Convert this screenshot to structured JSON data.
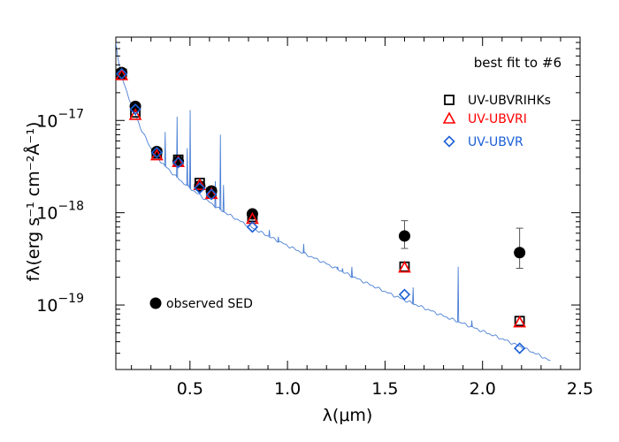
{
  "chart_data": {
    "type": "scatter",
    "title": "",
    "xlabel": "λ(μm)",
    "ylabel": "fλ(erg s⁻¹ cm⁻²Å⁻¹)",
    "xlim": [
      0.12,
      2.5
    ],
    "ylim": [
      2e-20,
      8e-17
    ],
    "yscale": "log",
    "grid": false,
    "x_ticks": [
      {
        "value": 0.5,
        "label": "0.5"
      },
      {
        "value": 1.0,
        "label": "1.0"
      },
      {
        "value": 1.5,
        "label": "1.5"
      },
      {
        "value": 2.0,
        "label": "2.0"
      },
      {
        "value": 2.5,
        "label": "2.5"
      }
    ],
    "y_ticks": [
      {
        "value": 1e-17,
        "base": "10",
        "exp": "−17"
      },
      {
        "value": 1e-18,
        "base": "10",
        "exp": "−18"
      },
      {
        "value": 1e-19,
        "base": "10",
        "exp": "−19"
      }
    ],
    "annotation": "best fit to #6",
    "legend": {
      "placement": "top-right",
      "entries": [
        {
          "label": "UV-UBVRIHKs",
          "marker": "square",
          "color": "#000000"
        },
        {
          "label": "UV-UBVRI",
          "marker": "triangle",
          "color": "#ff0000"
        },
        {
          "label": "UV-UBVR",
          "marker": "diamond",
          "color": "#1a5fd6"
        }
      ]
    },
    "observed_label": "observed SED",
    "series": [
      {
        "label": "observed SED",
        "marker": "filled-circle",
        "color": "#000000",
        "x": [
          0.15,
          0.22,
          0.33,
          0.44,
          0.55,
          0.61,
          0.82,
          1.6,
          2.19
        ],
        "y": [
          3.3e-17,
          1.42e-17,
          4.6e-18,
          3.6e-18,
          1.95e-18,
          1.72e-18,
          9.7e-19,
          5.6e-19,
          3.7e-19
        ],
        "yerr_low": [
          null,
          null,
          null,
          null,
          null,
          null,
          null,
          4.1e-19,
          2.5e-19
        ],
        "yerr_high": [
          null,
          null,
          null,
          null,
          null,
          null,
          null,
          8.2e-19,
          6.8e-19
        ]
      },
      {
        "label": "UV-UBVRIHKs",
        "marker": "square",
        "color": "#000000",
        "x": [
          0.15,
          0.22,
          0.33,
          0.44,
          0.55,
          0.61,
          0.82,
          1.6,
          2.19
        ],
        "y": [
          3.2e-17,
          1.22e-17,
          4.4e-18,
          3.75e-18,
          2.1e-18,
          1.65e-18,
          9e-19,
          2.6e-19,
          6.7e-20
        ]
      },
      {
        "label": "UV-UBVRI",
        "marker": "triangle",
        "color": "#ff0000",
        "x": [
          0.15,
          0.22,
          0.33,
          0.44,
          0.55,
          0.61,
          0.82,
          1.6,
          2.19
        ],
        "y": [
          3.1e-17,
          1.15e-17,
          4.2e-18,
          3.55e-18,
          2e-18,
          1.6e-18,
          8.6e-19,
          2.55e-19,
          6.5e-20
        ]
      },
      {
        "label": "UV-UBVR",
        "marker": "diamond",
        "color": "#1a5fd6",
        "x": [
          0.15,
          0.22,
          0.33,
          0.44,
          0.55,
          0.61,
          0.82,
          1.6,
          2.19
        ],
        "y": [
          3.2e-17,
          1.32e-17,
          4.5e-18,
          3.5e-18,
          1.85e-18,
          1.58e-18,
          7e-19,
          1.3e-19,
          3.4e-20
        ]
      }
    ],
    "model_spectrum": {
      "color": "#4a7fd4",
      "continuum": {
        "x": [
          0.12,
          0.13,
          0.14,
          0.15,
          0.17,
          0.2,
          0.25,
          0.3,
          0.35,
          0.4,
          0.45,
          0.5,
          0.55,
          0.6,
          0.65,
          0.7,
          0.8,
          0.9,
          1.0,
          1.1,
          1.2,
          1.3,
          1.4,
          1.5,
          1.6,
          1.7,
          1.8,
          1.9,
          2.0,
          2.1,
          2.2,
          2.3,
          2.35
        ],
        "y": [
          7e-17,
          5e-17,
          3.7e-17,
          3e-17,
          2.2e-17,
          1.5e-17,
          8e-18,
          5e-18,
          3.6e-18,
          2.8e-18,
          2.25e-18,
          1.85e-18,
          1.55e-18,
          1.3e-18,
          1.1e-18,
          9.5e-19,
          7.2e-19,
          5.6e-19,
          4.4e-19,
          3.5e-19,
          2.8e-19,
          2.2e-19,
          1.75e-19,
          1.4e-19,
          1.13e-19,
          9.3e-20,
          7.6e-20,
          6.3e-20,
          5.2e-20,
          4.3e-20,
          3.5e-20,
          2.8e-20,
          2.45e-20
        ]
      },
      "emission_lines": [
        {
          "x": 0.373,
          "peak": 7.5e-18
        },
        {
          "x": 0.434,
          "peak": 1.1e-17
        },
        {
          "x": 0.486,
          "peak": 5e-18
        },
        {
          "x": 0.501,
          "peak": 1.3e-17
        },
        {
          "x": 0.5,
          "peak": 4e-18
        },
        {
          "x": 0.63,
          "peak": 2.2e-18
        },
        {
          "x": 0.656,
          "peak": 7e-18
        },
        {
          "x": 0.672,
          "peak": 2e-18
        },
        {
          "x": 0.907,
          "peak": 6.5e-19
        },
        {
          "x": 0.953,
          "peak": 5.5e-19
        },
        {
          "x": 1.083,
          "peak": 4.6e-19
        },
        {
          "x": 1.257,
          "peak": 2.6e-19
        },
        {
          "x": 1.282,
          "peak": 2.5e-19
        },
        {
          "x": 1.33,
          "peak": 2.6e-19
        },
        {
          "x": 1.644,
          "peak": 1.55e-19
        },
        {
          "x": 1.875,
          "peak": 2.6e-19
        },
        {
          "x": 1.945,
          "peak": 6.8e-20
        }
      ]
    }
  }
}
